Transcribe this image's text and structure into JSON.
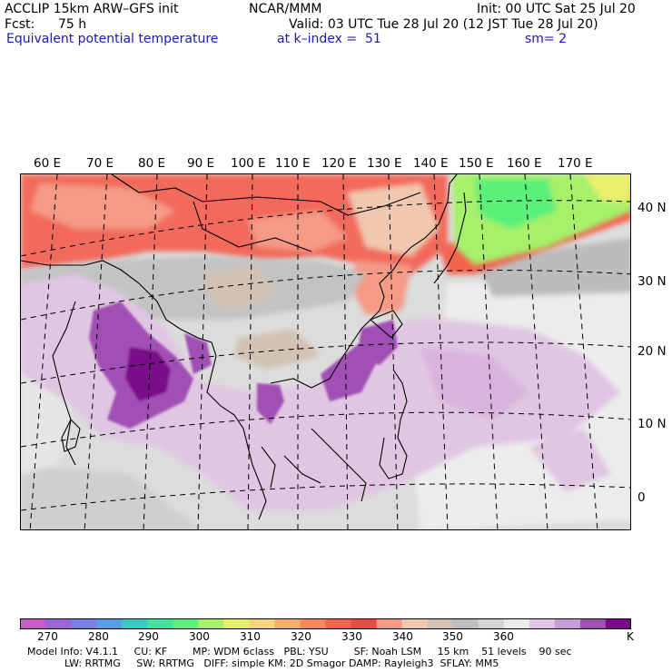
{
  "header": {
    "model": "ACCLIP 15km ARW–GFS init",
    "center": "NCAR/MMM",
    "init": "Init: 00 UTC Sat 25 Jul 20",
    "fcst_label": "Fcst:",
    "fcst_value": "75 h",
    "valid": "Valid: 03 UTC Tue 28 Jul 20 (12 JST Tue 28 Jul 20)",
    "field": "Equivalent potential temperature",
    "level": "at k–index =  51",
    "smooth": "sm= 2"
  },
  "map": {
    "longitude_labels": [
      "60 E",
      "70 E",
      "80 E",
      "90 E",
      "100 E",
      "110 E",
      "120 E",
      "130 E",
      "140 E",
      "150 E",
      "160 E",
      "170 E"
    ],
    "latitude_labels": [
      "40 N",
      "30 N",
      "20 N",
      "10 N",
      "0"
    ]
  },
  "colorbar": {
    "unit": "K",
    "tick_labels": [
      "270",
      "280",
      "290",
      "300",
      "310",
      "320",
      "330",
      "340",
      "350",
      "360"
    ],
    "colors": [
      "#c85ccb",
      "#9f64d9",
      "#7d7de6",
      "#5a9ee8",
      "#3dc7c5",
      "#3de6a0",
      "#5af07a",
      "#a6f06a",
      "#e8f06a",
      "#f4d57a",
      "#f4b06a",
      "#f48a5a",
      "#f4644f",
      "#ee4a44",
      "#f49a86",
      "#f0c8b0",
      "#d2c2b4",
      "#bebebe",
      "#d4d4d4",
      "#ececec",
      "#e0c6e2",
      "#c89cd6",
      "#a050b4",
      "#7a0a8a"
    ]
  },
  "model_info": {
    "line1": "Model Info: V4.1.1     CU: KF        MP: WDM 6class   PBL: YSU        SF: Noah LSM     15 km    51 levels    90 sec",
    "line2": "LW: RRTMG     SW: RRTMG   DIFF: simple KM: 2D Smagor DAMP: Rayleigh3  SFLAY: MM5"
  }
}
